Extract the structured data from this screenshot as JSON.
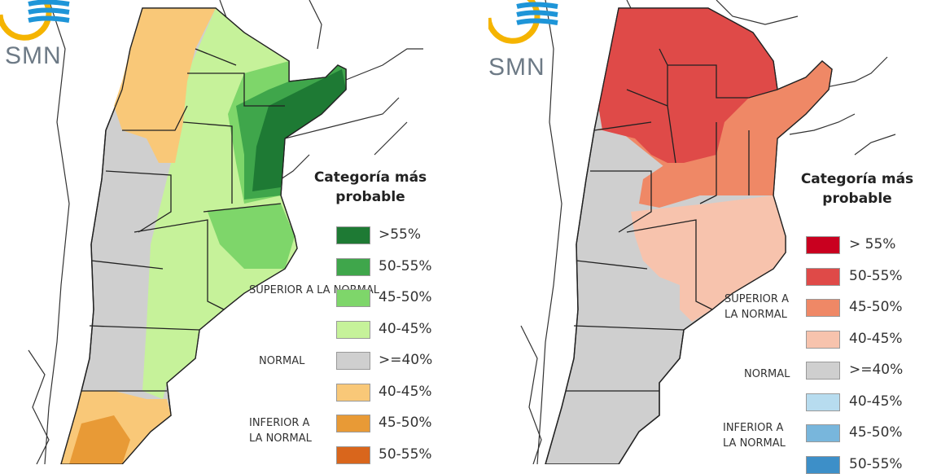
{
  "logo": {
    "text": "SMN"
  },
  "maps": [
    {
      "legend_title": "Categoría más probable",
      "groups": {
        "above": "SUPERIOR A LA NORMAL",
        "normal": "NORMAL",
        "below": "INFERIOR A LA NORMAL"
      },
      "items": [
        {
          "label": ">55%",
          "color": "#1e7a34"
        },
        {
          "label": "50-55%",
          "color": "#3fa64b"
        },
        {
          "label": "45-50%",
          "color": "#7ed66a"
        },
        {
          "label": "40-45%",
          "color": "#c6f29a"
        },
        {
          "label": ">=40%",
          "color": "#cfcfcf"
        },
        {
          "label": "40-45%",
          "color": "#f9c878"
        },
        {
          "label": "45-50%",
          "color": "#e89a36"
        },
        {
          "label": "50-55%",
          "color": "#d9661c"
        }
      ]
    },
    {
      "legend_title": "Categoría más probable",
      "groups": {
        "above": "SUPERIOR A LA NORMAL",
        "normal": "NORMAL",
        "below": "INFERIOR A LA NORMAL"
      },
      "items": [
        {
          "label": "> 55%",
          "color": "#c9001f"
        },
        {
          "label": "50-55%",
          "color": "#df4a48"
        },
        {
          "label": "45-50%",
          "color": "#ef8866"
        },
        {
          "label": "40-45%",
          "color": "#f7c3ad"
        },
        {
          "label": ">=40%",
          "color": "#cfcfcf"
        },
        {
          "label": "40-45%",
          "color": "#b7dcef"
        },
        {
          "label": "45-50%",
          "color": "#78b6dc"
        },
        {
          "label": "50-55%",
          "color": "#3d8fc8"
        }
      ]
    }
  ]
}
